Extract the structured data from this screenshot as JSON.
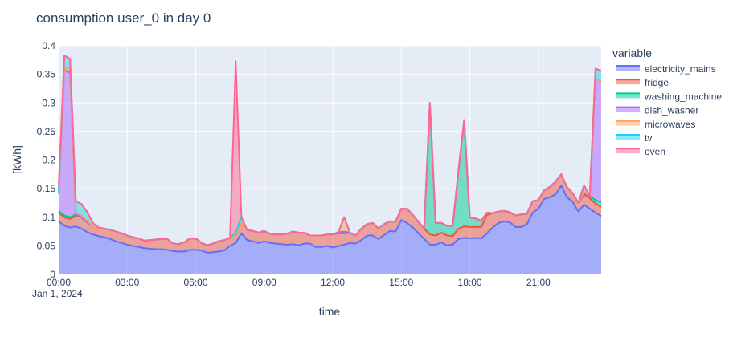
{
  "chart_data": {
    "type": "area",
    "stacked": true,
    "title": "consumption user_0 in day 0",
    "xlabel": "time",
    "ylabel": "[kWh]",
    "x_start": "2024-01-01 00:00",
    "x_interval": "15min",
    "xticks": [
      "00:00",
      "03:00",
      "06:00",
      "09:00",
      "12:00",
      "15:00",
      "18:00",
      "21:00"
    ],
    "xtick_date": "Jan 1, 2024",
    "yticks": [
      0,
      0.05,
      0.1,
      0.15,
      0.2,
      0.25,
      0.3,
      0.35,
      0.4
    ],
    "ytick_labels": [
      "0",
      "0.05",
      "0.1",
      "0.15",
      "0.2",
      "0.25",
      "0.3",
      "0.35",
      "0.4"
    ],
    "ylim": [
      0,
      0.4
    ],
    "grid": true,
    "plot_bgcolor": "#E5ECF6",
    "legend": {
      "title": "variable",
      "placement": "right"
    },
    "series": [
      {
        "name": "electricity_mains",
        "color": "#636efa",
        "values": [
          0.093,
          0.085,
          0.082,
          0.084,
          0.08,
          0.074,
          0.07,
          0.067,
          0.065,
          0.062,
          0.058,
          0.055,
          0.052,
          0.05,
          0.048,
          0.046,
          0.045,
          0.044,
          0.044,
          0.043,
          0.041,
          0.04,
          0.04,
          0.043,
          0.043,
          0.042,
          0.038,
          0.039,
          0.04,
          0.042,
          0.05,
          0.055,
          0.072,
          0.06,
          0.058,
          0.055,
          0.058,
          0.055,
          0.054,
          0.053,
          0.052,
          0.053,
          0.051,
          0.054,
          0.054,
          0.048,
          0.048,
          0.05,
          0.047,
          0.05,
          0.052,
          0.055,
          0.054,
          0.06,
          0.068,
          0.068,
          0.062,
          0.069,
          0.076,
          0.075,
          0.095,
          0.09,
          0.082,
          0.072,
          0.062,
          0.052,
          0.052,
          0.056,
          0.051,
          0.052,
          0.062,
          0.064,
          0.063,
          0.064,
          0.063,
          0.072,
          0.082,
          0.09,
          0.093,
          0.091,
          0.083,
          0.083,
          0.088,
          0.108,
          0.115,
          0.132,
          0.135,
          0.14,
          0.155,
          0.135,
          0.127,
          0.11,
          0.122,
          0.115,
          0.108,
          0.102
        ]
      },
      {
        "name": "fridge",
        "color": "#EF553B",
        "values": [
          0.015,
          0.015,
          0.015,
          0.018,
          0.02,
          0.017,
          0.015,
          0.015,
          0.015,
          0.016,
          0.017,
          0.017,
          0.016,
          0.015,
          0.015,
          0.013,
          0.015,
          0.017,
          0.018,
          0.019,
          0.013,
          0.013,
          0.016,
          0.02,
          0.02,
          0.013,
          0.013,
          0.015,
          0.018,
          0.018,
          0.014,
          0.014,
          0.018,
          0.018,
          0.018,
          0.018,
          0.018,
          0.016,
          0.016,
          0.017,
          0.019,
          0.022,
          0.022,
          0.019,
          0.014,
          0.02,
          0.02,
          0.02,
          0.023,
          0.022,
          0.02,
          0.018,
          0.014,
          0.02,
          0.02,
          0.022,
          0.018,
          0.019,
          0.017,
          0.017,
          0.02,
          0.025,
          0.022,
          0.02,
          0.018,
          0.018,
          0.016,
          0.017,
          0.017,
          0.015,
          0.018,
          0.02,
          0.02,
          0.019,
          0.02,
          0.032,
          0.025,
          0.02,
          0.018,
          0.018,
          0.02,
          0.022,
          0.018,
          0.02,
          0.015,
          0.015,
          0.018,
          0.022,
          0.02,
          0.018,
          0.015,
          0.015,
          0.018,
          0.018,
          0.016,
          0.016
        ]
      },
      {
        "name": "washing_machine",
        "color": "#00cc96",
        "values": [
          0.003,
          0.003,
          0.003,
          0.003,
          0,
          0,
          0,
          0,
          0,
          0,
          0,
          0,
          0,
          0,
          0,
          0,
          0,
          0,
          0,
          0,
          0,
          0,
          0,
          0,
          0,
          0,
          0,
          0,
          0,
          0,
          0,
          0,
          0,
          0,
          0,
          0,
          0,
          0,
          0,
          0,
          0,
          0,
          0,
          0,
          0,
          0,
          0,
          0,
          0,
          0,
          0,
          0,
          0,
          0,
          0,
          0,
          0,
          0,
          0,
          0,
          0,
          0,
          0,
          0,
          0,
          0.23,
          0.022,
          0.017,
          0.017,
          0.018,
          0.1,
          0.186,
          0.016,
          0.015,
          0.011,
          0.004,
          0,
          0,
          0,
          0,
          0,
          0,
          0,
          0,
          0,
          0,
          0,
          0,
          0,
          0,
          0,
          0,
          0.002,
          0.004,
          0.006,
          0.008
        ]
      },
      {
        "name": "dish_washer",
        "color": "#ab63fa",
        "values": [
          0.03,
          0.255,
          0.252,
          0,
          0,
          0,
          0,
          0,
          0,
          0,
          0,
          0,
          0,
          0,
          0,
          0,
          0,
          0,
          0,
          0,
          0,
          0,
          0,
          0,
          0,
          0,
          0,
          0,
          0,
          0,
          0,
          0,
          0,
          0,
          0,
          0,
          0,
          0,
          0,
          0,
          0,
          0,
          0,
          0,
          0,
          0,
          0,
          0,
          0,
          0.002,
          0.003,
          0,
          0,
          0,
          0,
          0,
          0,
          0,
          0,
          0,
          0,
          0,
          0,
          0,
          0,
          0,
          0,
          0,
          0,
          0,
          0,
          0,
          0,
          0,
          0,
          0,
          0,
          0,
          0,
          0,
          0,
          0,
          0,
          0,
          0,
          0,
          0,
          0,
          0,
          0,
          0,
          0,
          0,
          0,
          0.212,
          0.212
        ]
      },
      {
        "name": "microwaves",
        "color": "#FFA15A",
        "values": [
          0,
          0.005,
          0.005,
          0.003,
          0.003,
          0.003,
          0,
          0,
          0,
          0,
          0,
          0,
          0,
          0,
          0,
          0,
          0,
          0,
          0,
          0,
          0,
          0,
          0,
          0,
          0,
          0,
          0,
          0,
          0,
          0,
          0,
          0,
          0,
          0,
          0,
          0,
          0,
          0,
          0,
          0,
          0,
          0,
          0,
          0,
          0,
          0,
          0,
          0,
          0,
          0,
          0.025,
          0,
          0,
          0,
          0,
          0,
          0,
          0,
          0,
          0,
          0,
          0,
          0,
          0,
          0,
          0,
          0,
          0,
          0,
          0,
          0,
          0,
          0,
          0,
          0,
          0,
          0,
          0,
          0,
          0,
          0,
          0,
          0,
          0,
          0,
          0,
          0,
          0,
          0,
          0,
          0,
          0,
          0.004,
          0,
          0,
          0
        ]
      },
      {
        "name": "tv",
        "color": "#19d3f3",
        "values": [
          0,
          0.02,
          0.02,
          0.02,
          0.02,
          0.015,
          0.005,
          0,
          0,
          0,
          0,
          0,
          0,
          0,
          0,
          0,
          0,
          0,
          0,
          0,
          0,
          0,
          0,
          0,
          0,
          0,
          0,
          0,
          0,
          0,
          0,
          0.004,
          0.01,
          0,
          0,
          0,
          0,
          0,
          0,
          0,
          0,
          0,
          0,
          0,
          0,
          0,
          0,
          0,
          0,
          0,
          0,
          0,
          0,
          0,
          0,
          0,
          0,
          0,
          0,
          0,
          0,
          0,
          0,
          0,
          0,
          0,
          0,
          0,
          0,
          0,
          0,
          0,
          0,
          0,
          0,
          0,
          0,
          0,
          0,
          0,
          0,
          0,
          0,
          0,
          0,
          0,
          0,
          0,
          0,
          0,
          0,
          0,
          0.01,
          0,
          0.018,
          0.018
        ]
      },
      {
        "name": "oven",
        "color": "#FF6692",
        "values": [
          0.014,
          0,
          0,
          0,
          0,
          0,
          0,
          0,
          0,
          0,
          0,
          0,
          0,
          0,
          0,
          0,
          0,
          0,
          0,
          0,
          0,
          0,
          0,
          0,
          0,
          0,
          0,
          0,
          0,
          0,
          0,
          0.3,
          0,
          0,
          0,
          0,
          0,
          0,
          0,
          0,
          0,
          0,
          0,
          0,
          0,
          0,
          0,
          0,
          0,
          0,
          0,
          0,
          0,
          0,
          0,
          0,
          0,
          0,
          0,
          0,
          0,
          0,
          0,
          0,
          0,
          0,
          0,
          0,
          0,
          0,
          0,
          0,
          0,
          0,
          0,
          0,
          0,
          0,
          0,
          0,
          0,
          0,
          0,
          0,
          0,
          0,
          0,
          0,
          0,
          0,
          0,
          0,
          0,
          0,
          0,
          0
        ]
      }
    ]
  }
}
